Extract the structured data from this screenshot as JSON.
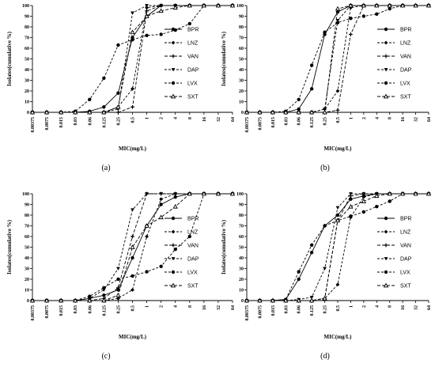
{
  "chart_data": [
    {
      "type": "line",
      "panel": "(a)",
      "xlabel": "MIC(mg/L)",
      "ylabel": "Isolates(cumulative %)",
      "ylim": [
        0,
        100
      ],
      "yticks": [
        0,
        10,
        20,
        30,
        40,
        50,
        60,
        70,
        80,
        90,
        100
      ],
      "categories": [
        "0.00375",
        "0.0075",
        "0.015",
        "0.03",
        "0.06",
        "0.125",
        "0.25",
        "0.5",
        "1",
        "2",
        "4",
        "8",
        "16",
        "32",
        "64"
      ],
      "series": [
        {
          "name": "BPR",
          "values": [
            0,
            0,
            0,
            0,
            1,
            5,
            18,
            70,
            90,
            100,
            100,
            100,
            100,
            100,
            100
          ]
        },
        {
          "name": "LNZ",
          "values": [
            0,
            0,
            0,
            0,
            0,
            0,
            5,
            22,
            98,
            100,
            100,
            100,
            100,
            100,
            100
          ]
        },
        {
          "name": "VAN",
          "values": [
            0,
            0,
            0,
            0,
            0,
            0,
            0,
            5,
            95,
            100,
            100,
            100,
            100,
            100,
            100
          ]
        },
        {
          "name": "DAP",
          "values": [
            0,
            0,
            0,
            0,
            0,
            0,
            3,
            93,
            100,
            100,
            100,
            100,
            100,
            100,
            100
          ]
        },
        {
          "name": "LVX",
          "values": [
            0,
            0,
            0,
            1,
            12,
            32,
            63,
            68,
            72,
            73,
            77,
            83,
            100,
            100,
            100
          ]
        },
        {
          "name": "SXT",
          "values": [
            0,
            0,
            0,
            0,
            0,
            0,
            5,
            75,
            90,
            95,
            98,
            100,
            100,
            100,
            100
          ]
        }
      ]
    },
    {
      "type": "line",
      "panel": "(b)",
      "xlabel": "MIC(mg/L)",
      "ylabel": "Isolates(cumulative %)",
      "ylim": [
        0,
        100
      ],
      "yticks": [
        0,
        10,
        20,
        30,
        40,
        50,
        60,
        70,
        80,
        90,
        100
      ],
      "categories": [
        "0.00375",
        "0.0075",
        "0.015",
        "0.03",
        "0.06",
        "0.125",
        "0.25",
        "0.5",
        "1",
        "2",
        "4",
        "8",
        "16",
        "32",
        "64"
      ],
      "series": [
        {
          "name": "BPR",
          "values": [
            0,
            0,
            0,
            0,
            3,
            22,
            73,
            94,
            100,
            100,
            100,
            100,
            100,
            100,
            100
          ]
        },
        {
          "name": "LNZ",
          "values": [
            0,
            0,
            0,
            0,
            0,
            0,
            3,
            20,
            98,
            100,
            100,
            100,
            100,
            100,
            100
          ]
        },
        {
          "name": "VAN",
          "values": [
            0,
            0,
            0,
            0,
            0,
            0,
            0,
            2,
            73,
            100,
            100,
            100,
            100,
            100,
            100
          ]
        },
        {
          "name": "DAP",
          "values": [
            0,
            0,
            0,
            0,
            0,
            0,
            3,
            86,
            100,
            100,
            100,
            100,
            100,
            100,
            100
          ]
        },
        {
          "name": "LVX",
          "values": [
            0,
            0,
            0,
            1,
            12,
            44,
            75,
            84,
            88,
            90,
            92,
            97,
            100,
            100,
            100
          ]
        },
        {
          "name": "SXT",
          "values": [
            0,
            0,
            0,
            0,
            0,
            0,
            0,
            97,
            100,
            100,
            100,
            100,
            100,
            100,
            100
          ]
        }
      ]
    },
    {
      "type": "line",
      "panel": "(c)",
      "xlabel": "MIC(mg/L)",
      "ylabel": "Isolates(cumulative %)",
      "ylim": [
        0,
        100
      ],
      "yticks": [
        0,
        10,
        20,
        30,
        40,
        50,
        60,
        70,
        80,
        90,
        100
      ],
      "categories": [
        "0.00375",
        "0.0075",
        "0.015",
        "0.03",
        "0.06",
        "0.125",
        "0.25",
        "0.5",
        "1",
        "2",
        "4",
        "8",
        "16",
        "32",
        "64"
      ],
      "series": [
        {
          "name": "BPR",
          "values": [
            0,
            0,
            0,
            0,
            2,
            5,
            10,
            40,
            70,
            90,
            97,
            100,
            100,
            100,
            100
          ]
        },
        {
          "name": "LNZ",
          "values": [
            0,
            0,
            0,
            0,
            0,
            0,
            2,
            10,
            60,
            95,
            100,
            100,
            100,
            100,
            100
          ]
        },
        {
          "name": "VAN",
          "values": [
            0,
            0,
            0,
            0,
            0,
            2,
            12,
            60,
            100,
            100,
            100,
            100,
            100,
            100,
            100
          ]
        },
        {
          "name": "DAP",
          "values": [
            0,
            0,
            0,
            0,
            2,
            10,
            30,
            85,
            100,
            100,
            100,
            100,
            100,
            100,
            100
          ]
        },
        {
          "name": "LVX",
          "values": [
            0,
            0,
            0,
            0,
            4,
            12,
            20,
            23,
            27,
            32,
            48,
            60,
            100,
            100,
            100
          ]
        },
        {
          "name": "SXT",
          "values": [
            0,
            0,
            0,
            0,
            0,
            0,
            5,
            50,
            70,
            78,
            88,
            100,
            100,
            100,
            100
          ]
        }
      ]
    },
    {
      "type": "line",
      "panel": "(d)",
      "xlabel": "MIC(mg/L)",
      "ylabel": "Isolates(cumulative %)",
      "ylim": [
        0,
        100
      ],
      "yticks": [
        0,
        10,
        20,
        30,
        40,
        50,
        60,
        70,
        80,
        90,
        100
      ],
      "categories": [
        "0.00375",
        "0.0075",
        "0.015",
        "0.03",
        "0.06",
        "0.125",
        "0.25",
        "0.5",
        "1",
        "2",
        "4",
        "8",
        "16",
        "32",
        "64"
      ],
      "series": [
        {
          "name": "BPR",
          "values": [
            0,
            0,
            0,
            1,
            20,
            45,
            70,
            80,
            95,
            98,
            100,
            100,
            100,
            100,
            100
          ]
        },
        {
          "name": "LNZ",
          "values": [
            0,
            0,
            0,
            0,
            0,
            0,
            2,
            15,
            78,
            97,
            100,
            100,
            100,
            100,
            100
          ]
        },
        {
          "name": "VAN",
          "values": [
            0,
            0,
            0,
            0,
            0,
            0,
            2,
            75,
            98,
            100,
            100,
            100,
            100,
            100,
            100
          ]
        },
        {
          "name": "DAP",
          "values": [
            0,
            0,
            0,
            0,
            1,
            3,
            30,
            87,
            100,
            100,
            100,
            100,
            100,
            100,
            100
          ]
        },
        {
          "name": "LVX",
          "values": [
            0,
            0,
            0,
            1,
            27,
            52,
            70,
            75,
            79,
            83,
            88,
            93,
            100,
            100,
            100
          ]
        },
        {
          "name": "SXT",
          "values": [
            0,
            0,
            0,
            0,
            0,
            0,
            2,
            75,
            88,
            93,
            98,
            100,
            100,
            100,
            100
          ]
        }
      ]
    }
  ]
}
